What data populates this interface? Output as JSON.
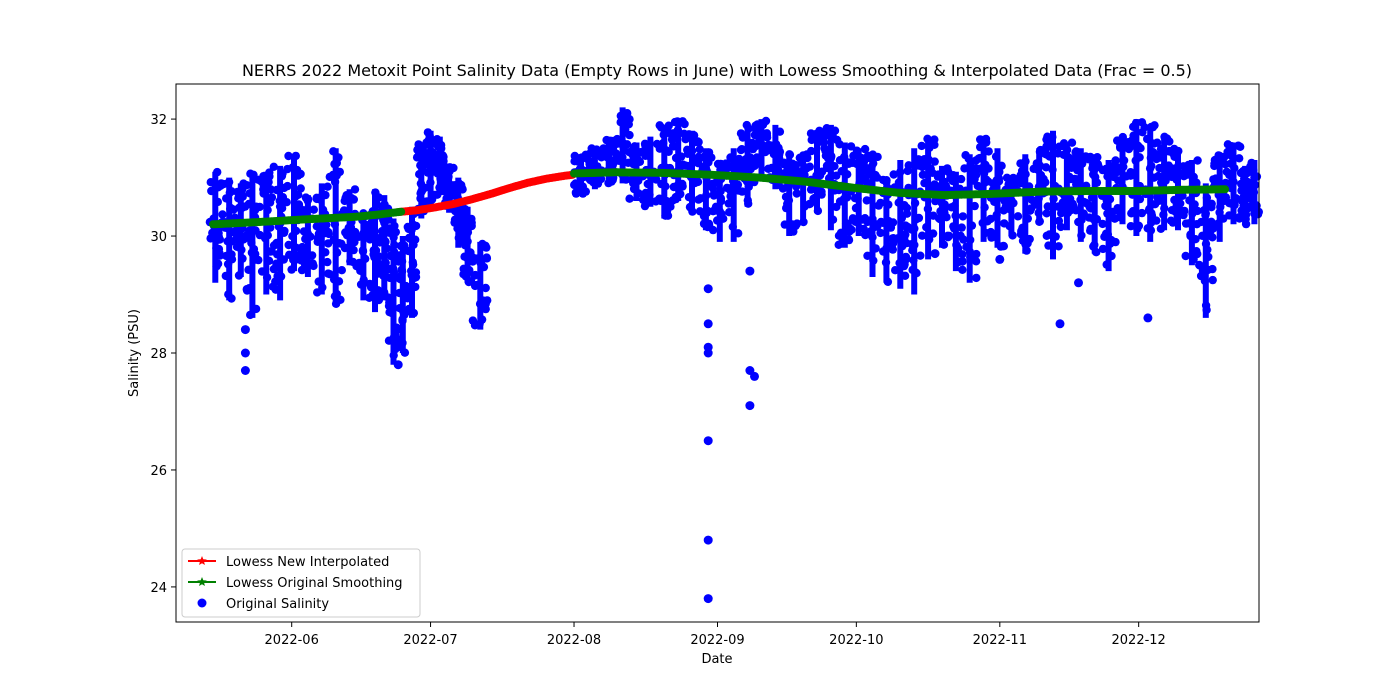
{
  "chart_data": {
    "type": "scatter",
    "title": "NERRS 2022 Metoxit Point Salinity Data (Empty Rows in June) with Lowess Smoothing & Interpolated Data (Frac = 0.5)",
    "xlabel": "Date",
    "ylabel": "Salinity (PSU)",
    "xlim": [
      "2022-05-07",
      "2022-12-27"
    ],
    "ylim": [
      23.4,
      32.6
    ],
    "x_ticks": [
      "2022-06",
      "2022-07",
      "2022-08",
      "2022-09",
      "2022-10",
      "2022-11",
      "2022-12"
    ],
    "y_ticks": [
      24,
      26,
      28,
      30,
      32
    ],
    "grid": false,
    "legend_position": "lower-left",
    "colors": {
      "original": "#0000ff",
      "interpolated": "#ff0000",
      "smoothing": "#008000"
    },
    "series": [
      {
        "name": "Lowess New Interpolated",
        "kind": "line",
        "marker": "star",
        "color": "#ff0000",
        "points": [
          [
            "2022-06-24",
            30.41
          ],
          [
            "2022-06-28",
            30.44
          ],
          [
            "2022-07-02",
            30.49
          ],
          [
            "2022-07-06",
            30.55
          ],
          [
            "2022-07-10",
            30.63
          ],
          [
            "2022-07-14",
            30.72
          ],
          [
            "2022-07-18",
            30.82
          ],
          [
            "2022-07-22",
            30.91
          ],
          [
            "2022-07-26",
            30.98
          ],
          [
            "2022-07-30",
            31.03
          ],
          [
            "2022-08-01",
            31.05
          ]
        ]
      },
      {
        "name": "Lowess Original Smoothing",
        "kind": "line",
        "marker": "star",
        "color": "#008000",
        "points": [
          [
            "2022-05-15",
            30.2
          ],
          [
            "2022-05-25",
            30.24
          ],
          [
            "2022-06-05",
            30.29
          ],
          [
            "2022-06-15",
            30.33
          ],
          [
            "2022-06-20",
            30.37
          ],
          [
            "2022-06-25",
            30.42
          ],
          [
            "2022-08-01",
            31.07
          ],
          [
            "2022-08-10",
            31.09
          ],
          [
            "2022-08-20",
            31.08
          ],
          [
            "2022-08-30",
            31.05
          ],
          [
            "2022-09-10",
            31.0
          ],
          [
            "2022-09-20",
            30.93
          ],
          [
            "2022-10-01",
            30.82
          ],
          [
            "2022-10-10",
            30.74
          ],
          [
            "2022-10-20",
            30.7
          ],
          [
            "2022-10-30",
            30.72
          ],
          [
            "2022-11-10",
            30.76
          ],
          [
            "2022-11-20",
            30.77
          ],
          [
            "2022-12-01",
            30.77
          ],
          [
            "2022-12-10",
            30.79
          ],
          [
            "2022-12-20",
            30.8
          ]
        ]
      },
      {
        "name": "Original Salinity",
        "kind": "scatter",
        "color": "#0000ff",
        "band_points": [
          [
            "2022-05-14",
            29.2,
            31.1
          ],
          [
            "2022-05-17",
            28.9,
            31.0
          ],
          [
            "2022-05-20",
            29.3,
            30.9
          ],
          [
            "2022-05-22",
            28.6,
            31.1
          ],
          [
            "2022-05-25",
            29.0,
            31.1
          ],
          [
            "2022-05-28",
            28.9,
            31.2
          ],
          [
            "2022-05-31",
            29.4,
            31.4
          ],
          [
            "2022-06-03",
            29.3,
            30.7
          ],
          [
            "2022-06-06",
            29.0,
            30.9
          ],
          [
            "2022-06-09",
            28.8,
            31.5
          ],
          [
            "2022-06-12",
            29.5,
            30.8
          ],
          [
            "2022-06-15",
            28.9,
            30.4
          ],
          [
            "2022-06-18",
            28.7,
            30.8
          ],
          [
            "2022-06-20",
            28.9,
            30.7
          ],
          [
            "2022-06-22",
            27.8,
            30.3
          ],
          [
            "2022-06-24",
            28.0,
            30.0
          ],
          [
            "2022-06-26",
            28.6,
            30.5
          ],
          [
            "2022-06-28",
            30.3,
            31.6
          ],
          [
            "2022-06-30",
            30.5,
            31.8
          ],
          [
            "2022-07-02",
            30.7,
            31.7
          ],
          [
            "2022-07-04",
            30.4,
            31.2
          ],
          [
            "2022-07-06",
            29.8,
            31.0
          ],
          [
            "2022-07-08",
            29.2,
            30.5
          ],
          [
            "2022-07-10",
            28.4,
            29.9
          ],
          [
            "2022-08-01",
            30.7,
            31.4
          ],
          [
            "2022-08-04",
            30.8,
            31.5
          ],
          [
            "2022-08-07",
            30.9,
            31.7
          ],
          [
            "2022-08-10",
            30.9,
            32.2
          ],
          [
            "2022-08-13",
            30.6,
            31.6
          ],
          [
            "2022-08-16",
            30.5,
            31.7
          ],
          [
            "2022-08-19",
            30.3,
            31.9
          ],
          [
            "2022-08-22",
            30.6,
            32.0
          ],
          [
            "2022-08-25",
            30.4,
            31.8
          ],
          [
            "2022-08-28",
            30.1,
            31.5
          ],
          [
            "2022-08-31",
            29.9,
            31.3
          ],
          [
            "2022-09-03",
            29.9,
            31.5
          ],
          [
            "2022-09-06",
            30.5,
            31.9
          ],
          [
            "2022-09-09",
            31.0,
            32.0
          ],
          [
            "2022-09-12",
            30.8,
            31.9
          ],
          [
            "2022-09-15",
            30.0,
            31.4
          ],
          [
            "2022-09-18",
            30.2,
            31.4
          ],
          [
            "2022-09-21",
            30.4,
            31.8
          ],
          [
            "2022-09-24",
            30.1,
            31.9
          ],
          [
            "2022-09-27",
            29.8,
            31.6
          ],
          [
            "2022-09-30",
            30.0,
            31.5
          ],
          [
            "2022-10-03",
            29.3,
            31.4
          ],
          [
            "2022-10-06",
            29.2,
            31.0
          ],
          [
            "2022-10-09",
            29.1,
            31.3
          ],
          [
            "2022-10-12",
            29.0,
            31.5
          ],
          [
            "2022-10-15",
            29.6,
            31.7
          ],
          [
            "2022-10-18",
            29.8,
            31.2
          ],
          [
            "2022-10-21",
            29.4,
            31.1
          ],
          [
            "2022-10-24",
            29.2,
            31.4
          ],
          [
            "2022-10-27",
            29.9,
            31.7
          ],
          [
            "2022-10-30",
            29.8,
            31.5
          ],
          [
            "2022-11-02",
            30.0,
            31.0
          ],
          [
            "2022-11-05",
            29.7,
            31.4
          ],
          [
            "2022-11-08",
            30.2,
            31.5
          ],
          [
            "2022-11-11",
            29.6,
            31.8
          ],
          [
            "2022-11-14",
            30.1,
            31.6
          ],
          [
            "2022-11-17",
            29.9,
            31.5
          ],
          [
            "2022-11-20",
            29.7,
            31.4
          ],
          [
            "2022-11-23",
            29.4,
            31.3
          ],
          [
            "2022-11-26",
            30.2,
            31.7
          ],
          [
            "2022-11-29",
            30.0,
            32.0
          ],
          [
            "2022-12-02",
            29.9,
            31.9
          ],
          [
            "2022-12-05",
            30.1,
            31.7
          ],
          [
            "2022-12-08",
            30.1,
            31.5
          ],
          [
            "2022-12-11",
            29.5,
            31.3
          ],
          [
            "2022-12-14",
            28.6,
            30.9
          ],
          [
            "2022-12-17",
            29.9,
            31.4
          ],
          [
            "2022-12-20",
            30.2,
            31.6
          ],
          [
            "2022-12-23",
            30.2,
            31.2
          ],
          [
            "2022-12-25",
            30.2,
            31.3
          ]
        ],
        "outliers": [
          [
            "2022-05-22",
            28.4
          ],
          [
            "2022-05-22",
            28.0
          ],
          [
            "2022-05-22",
            27.7
          ],
          [
            "2022-08-30",
            29.1
          ],
          [
            "2022-08-30",
            28.5
          ],
          [
            "2022-08-30",
            28.1
          ],
          [
            "2022-08-30",
            28.0
          ],
          [
            "2022-08-30",
            26.5
          ],
          [
            "2022-08-30",
            24.8
          ],
          [
            "2022-08-30",
            23.8
          ],
          [
            "2022-09-08",
            29.4
          ],
          [
            "2022-09-08",
            27.7
          ],
          [
            "2022-09-09",
            27.6
          ],
          [
            "2022-09-08",
            27.1
          ],
          [
            "2022-10-18",
            29.7
          ],
          [
            "2022-11-01",
            29.6
          ],
          [
            "2022-11-14",
            28.5
          ],
          [
            "2022-11-18",
            29.2
          ],
          [
            "2022-12-03",
            28.6
          ],
          [
            "2022-06-24",
            27.8
          ]
        ]
      }
    ]
  }
}
